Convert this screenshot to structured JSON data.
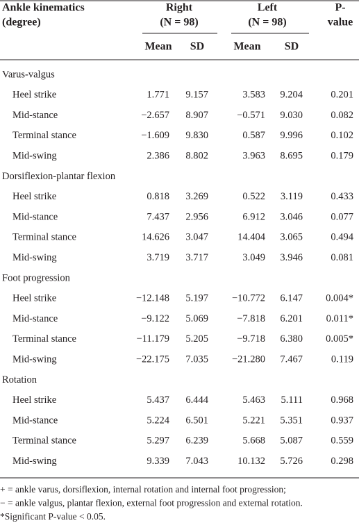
{
  "header": {
    "title": [
      "Ankle kinematics",
      "(degree)"
    ],
    "groups": [
      {
        "name": "Right",
        "n": "(N = 98)"
      },
      {
        "name": "Left",
        "n": "(N = 98)"
      }
    ],
    "p_value": [
      "P-",
      "value"
    ],
    "subheaders": [
      "Mean",
      "SD",
      "Mean",
      "SD"
    ]
  },
  "sections": [
    {
      "name": "Varus-valgus",
      "rows": [
        {
          "label": "Heel strike",
          "cells": [
            "1.771",
            "9.157",
            "3.583",
            "9.204",
            "0.201"
          ]
        },
        {
          "label": "Mid-stance",
          "cells": [
            "−2.657",
            "8.907",
            "−0.571",
            "9.030",
            "0.082"
          ]
        },
        {
          "label": "Terminal stance",
          "cells": [
            "−1.609",
            "9.830",
            "0.587",
            "9.996",
            "0.102"
          ]
        },
        {
          "label": "Mid-swing",
          "cells": [
            "2.386",
            "8.802",
            "3.963",
            "8.695",
            "0.179"
          ]
        }
      ]
    },
    {
      "name": "Dorsiflexion-plantar flexion",
      "rows": [
        {
          "label": "Heel strike",
          "cells": [
            "0.818",
            "3.269",
            "0.522",
            "3.119",
            "0.433"
          ]
        },
        {
          "label": "Mid-stance",
          "cells": [
            "7.437",
            "2.956",
            "6.912",
            "3.046",
            "0.077"
          ]
        },
        {
          "label": "Terminal stance",
          "cells": [
            "14.626",
            "3.047",
            "14.404",
            "3.065",
            "0.494"
          ]
        },
        {
          "label": "Mid-swing",
          "cells": [
            "3.719",
            "3.717",
            "3.049",
            "3.946",
            "0.081"
          ]
        }
      ]
    },
    {
      "name": "Foot progression",
      "rows": [
        {
          "label": "Heel strike",
          "cells": [
            "−12.148",
            "5.197",
            "−10.772",
            "6.147",
            "0.004*"
          ]
        },
        {
          "label": "Mid-stance",
          "cells": [
            "−9.122",
            "5.069",
            "−7.818",
            "6.201",
            "0.011*"
          ]
        },
        {
          "label": "Terminal stance",
          "cells": [
            "−11.179",
            "5.205",
            "−9.718",
            "6.380",
            "0.005*"
          ]
        },
        {
          "label": "Mid-swing",
          "cells": [
            "−22.175",
            "7.035",
            "−21.280",
            "7.467",
            "0.119"
          ]
        }
      ]
    },
    {
      "name": "Rotation",
      "rows": [
        {
          "label": "Heel strike",
          "cells": [
            "5.437",
            "6.444",
            "5.463",
            "5.111",
            "0.968"
          ]
        },
        {
          "label": "Mid-stance",
          "cells": [
            "5.224",
            "6.501",
            "5.221",
            "5.351",
            "0.937"
          ]
        },
        {
          "label": "Terminal stance",
          "cells": [
            "5.297",
            "6.239",
            "5.668",
            "5.087",
            "0.559"
          ]
        },
        {
          "label": "Mid-swing",
          "cells": [
            "9.339",
            "7.043",
            "10.132",
            "5.726",
            "0.298"
          ]
        }
      ]
    }
  ],
  "footnotes": [
    "+ = ankle varus, dorsiflexion, internal rotation and internal foot progression;",
    "− = ankle valgus, plantar flexion, external foot progression and external rotation.",
    "*Significant P-value < 0.05."
  ]
}
